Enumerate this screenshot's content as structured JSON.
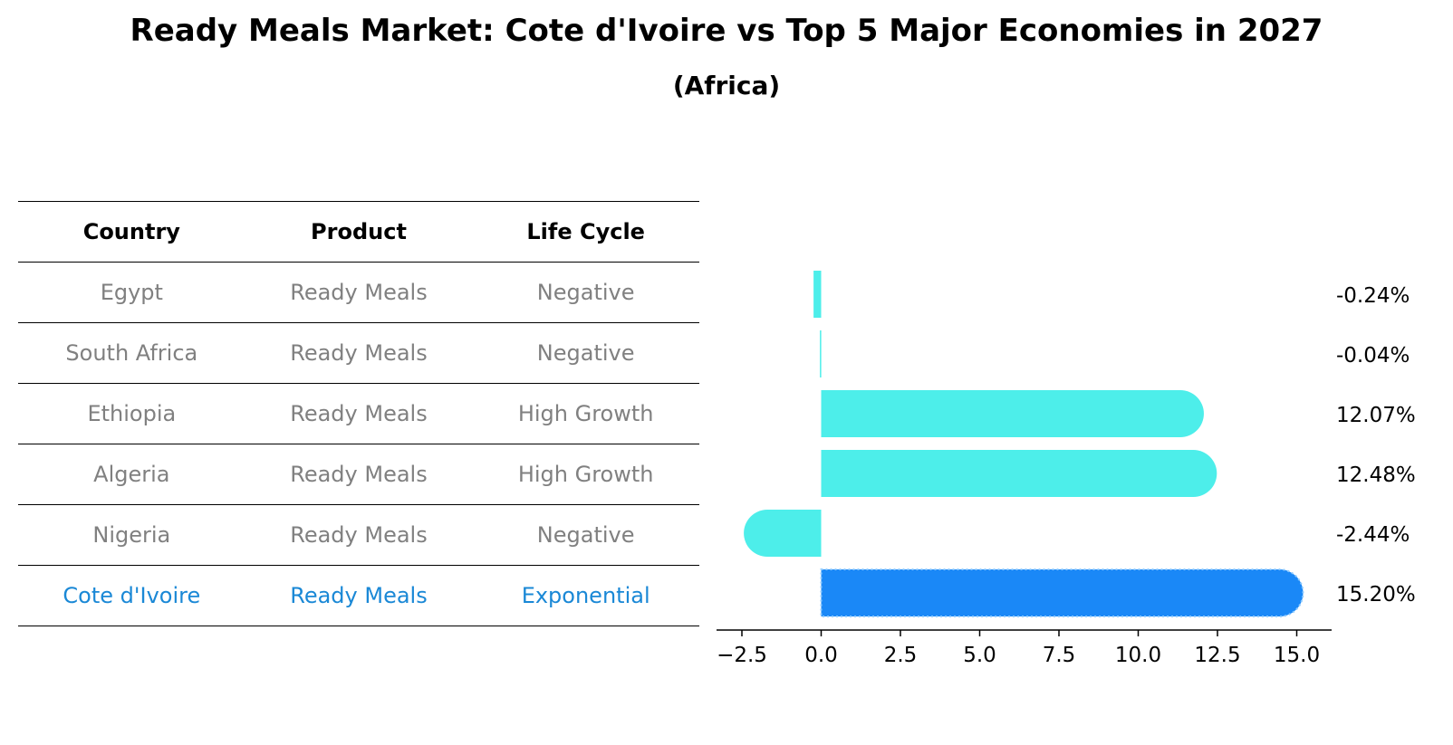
{
  "header": {
    "title": "Ready Meals Market: Cote d'Ivoire vs Top 5 Major Economies in 2027",
    "subtitle": "(Africa)"
  },
  "table": {
    "columns": [
      "Country",
      "Product",
      "Life Cycle"
    ],
    "rows": [
      {
        "country": "Egypt",
        "product": "Ready Meals",
        "life_cycle": "Negative"
      },
      {
        "country": "South Africa",
        "product": "Ready Meals",
        "life_cycle": "Negative"
      },
      {
        "country": "Ethiopia",
        "product": "Ready Meals",
        "life_cycle": "High Growth"
      },
      {
        "country": "Algeria",
        "product": "Ready Meals",
        "life_cycle": "High Growth"
      },
      {
        "country": "Nigeria",
        "product": "Ready Meals",
        "life_cycle": "Negative"
      },
      {
        "country": "Cote d'Ivoire",
        "product": "Ready Meals",
        "life_cycle": "Exponential"
      }
    ]
  },
  "colors": {
    "bar": "#4deeea",
    "highlight": "#1a88f7",
    "text_muted": "#808080",
    "text_highlight": "#1a88d6"
  },
  "chart_data": {
    "type": "bar",
    "orientation": "horizontal",
    "categories": [
      "Egypt",
      "South Africa",
      "Ethiopia",
      "Algeria",
      "Nigeria",
      "Cote d'Ivoire"
    ],
    "values": [
      -0.24,
      -0.04,
      12.07,
      12.48,
      -2.44,
      15.2
    ],
    "value_labels": [
      "-0.24%",
      "-0.04%",
      "12.07%",
      "12.48%",
      "-2.44%",
      "15.20%"
    ],
    "highlight_category": "Cote d'Ivoire",
    "xlim": [
      -3.3,
      16.1
    ],
    "xticks": [
      -2.5,
      0.0,
      2.5,
      5.0,
      7.5,
      10.0,
      12.5,
      15.0
    ],
    "xtick_labels": [
      "−2.5",
      "0.0",
      "2.5",
      "5.0",
      "7.5",
      "10.0",
      "12.5",
      "15.0"
    ],
    "xlabel": "",
    "ylabel": ""
  }
}
